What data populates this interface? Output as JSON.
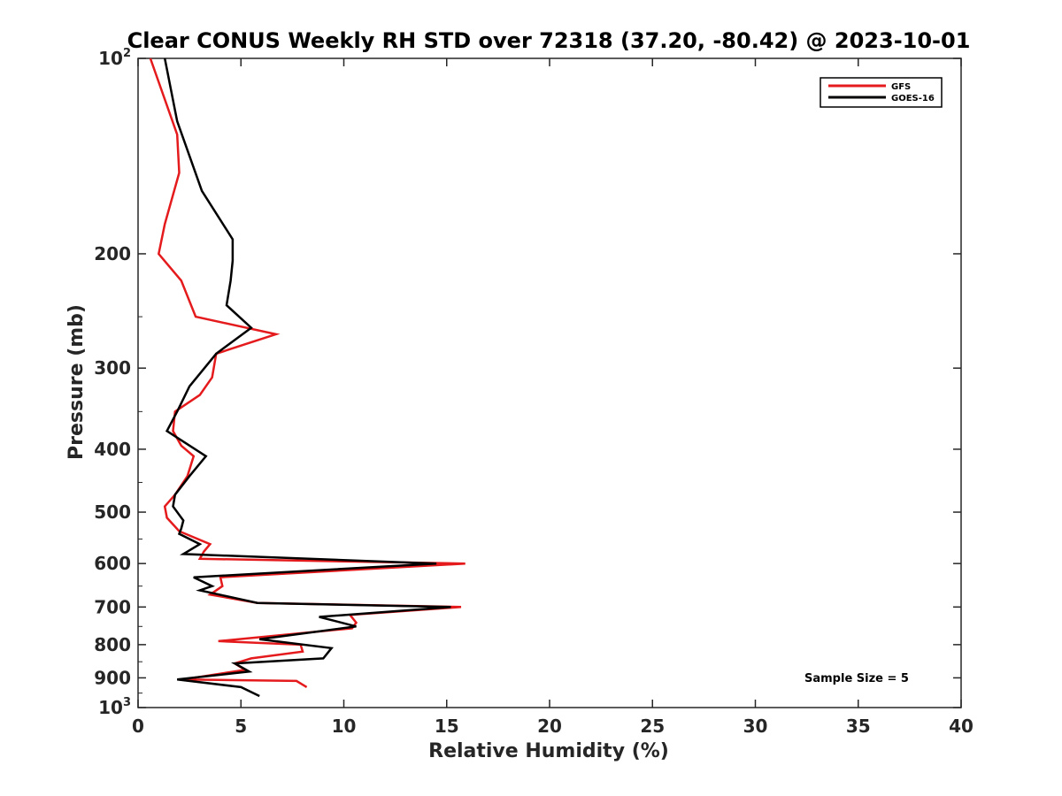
{
  "chart_data": {
    "type": "line",
    "title": "Clear CONUS Weekly RH STD over 72318 (37.20, -80.42) @ 2023-10-01",
    "xlabel": "Relative Humidity (%)",
    "ylabel": "Pressure (mb)",
    "xlim": [
      0,
      40
    ],
    "ylim": [
      100,
      1000
    ],
    "y_scale": "log",
    "y_reversed": true,
    "grid": false,
    "x_ticks": [
      {
        "value": 0,
        "label": "0"
      },
      {
        "value": 5,
        "label": "5"
      },
      {
        "value": 10,
        "label": "10"
      },
      {
        "value": 15,
        "label": "15"
      },
      {
        "value": 20,
        "label": "20"
      },
      {
        "value": 25,
        "label": "25"
      },
      {
        "value": 30,
        "label": "30"
      },
      {
        "value": 35,
        "label": "35"
      },
      {
        "value": 40,
        "label": "40"
      }
    ],
    "y_ticks": [
      {
        "value": 100,
        "base": "10",
        "exp": "2"
      },
      {
        "value": 200,
        "base": "200",
        "exp": ""
      },
      {
        "value": 300,
        "base": "300",
        "exp": ""
      },
      {
        "value": 400,
        "base": "400",
        "exp": ""
      },
      {
        "value": 500,
        "base": "500",
        "exp": ""
      },
      {
        "value": 600,
        "base": "600",
        "exp": ""
      },
      {
        "value": 700,
        "base": "700",
        "exp": ""
      },
      {
        "value": 800,
        "base": "800",
        "exp": ""
      },
      {
        "value": 900,
        "base": "900",
        "exp": ""
      },
      {
        "value": 1000,
        "base": "10",
        "exp": "3"
      }
    ],
    "legend_position": "top-right",
    "annotation": "Sample Size = 5",
    "series": [
      {
        "name": "GFS",
        "color": "#e41a1c",
        "points": [
          [
            0.6,
            100
          ],
          [
            1.9,
            131
          ],
          [
            2.0,
            150
          ],
          [
            1.3,
            180
          ],
          [
            1.0,
            200
          ],
          [
            2.1,
            220
          ],
          [
            2.8,
            250
          ],
          [
            6.7,
            266
          ],
          [
            3.8,
            285
          ],
          [
            3.6,
            310
          ],
          [
            3.0,
            330
          ],
          [
            1.8,
            350
          ],
          [
            1.7,
            375
          ],
          [
            2.1,
            395
          ],
          [
            2.7,
            410
          ],
          [
            2.4,
            440
          ],
          [
            1.8,
            470
          ],
          [
            1.3,
            490
          ],
          [
            1.4,
            510
          ],
          [
            2.0,
            535
          ],
          [
            3.5,
            560
          ],
          [
            3.2,
            575
          ],
          [
            3.0,
            590
          ],
          [
            15.9,
            600
          ],
          [
            4.0,
            630
          ],
          [
            4.1,
            650
          ],
          [
            3.5,
            670
          ],
          [
            5.8,
            690
          ],
          [
            15.7,
            700
          ],
          [
            10.3,
            720
          ],
          [
            10.6,
            740
          ],
          [
            10.4,
            755
          ],
          [
            3.9,
            790
          ],
          [
            7.9,
            800
          ],
          [
            8.0,
            820
          ],
          [
            5.5,
            840
          ],
          [
            4.7,
            855
          ],
          [
            5.2,
            875
          ],
          [
            2.2,
            905
          ],
          [
            7.7,
            910
          ],
          [
            8.2,
            930
          ]
        ]
      },
      {
        "name": "GOES-16",
        "color": "#000000",
        "points": [
          [
            1.3,
            100
          ],
          [
            1.9,
            125
          ],
          [
            3.1,
            160
          ],
          [
            4.6,
            190
          ],
          [
            4.6,
            205
          ],
          [
            4.5,
            220
          ],
          [
            4.3,
            240
          ],
          [
            5.5,
            260
          ],
          [
            3.8,
            285
          ],
          [
            2.5,
            320
          ],
          [
            1.9,
            350
          ],
          [
            1.4,
            375
          ],
          [
            3.3,
            410
          ],
          [
            2.5,
            440
          ],
          [
            1.8,
            470
          ],
          [
            1.7,
            490
          ],
          [
            2.2,
            515
          ],
          [
            2.1,
            530
          ],
          [
            2.0,
            540
          ],
          [
            3.0,
            560
          ],
          [
            2.2,
            580
          ],
          [
            14.5,
            600
          ],
          [
            2.7,
            630
          ],
          [
            3.6,
            650
          ],
          [
            3.0,
            660
          ],
          [
            5.8,
            690
          ],
          [
            15.2,
            700
          ],
          [
            8.8,
            725
          ],
          [
            10.6,
            750
          ],
          [
            5.9,
            785
          ],
          [
            9.4,
            810
          ],
          [
            9.0,
            840
          ],
          [
            4.7,
            855
          ],
          [
            5.4,
            880
          ],
          [
            1.9,
            905
          ],
          [
            5.0,
            930
          ],
          [
            5.9,
            960
          ]
        ]
      }
    ]
  }
}
